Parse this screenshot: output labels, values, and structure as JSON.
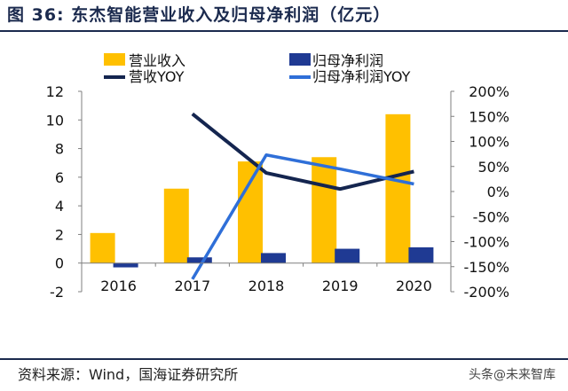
{
  "header": {
    "title": "图 36:  东杰智能营业收入及归母净利润（亿元）"
  },
  "footer": {
    "source": "资料来源：Wind，国海证券研究所",
    "watermark": "头条@未来智库"
  },
  "colors": {
    "revenue_bar": "#FFC000",
    "profit_bar": "#1F3A93",
    "revenue_yoy_line": "#14254F",
    "profit_yoy_line": "#2F6FD8",
    "title": "#1b2a4e"
  },
  "chart_data": {
    "type": "bar",
    "categories": [
      "2016",
      "2017",
      "2018",
      "2019",
      "2020"
    ],
    "series": [
      {
        "name": "营业收入",
        "type": "bar",
        "axis": "left",
        "values": [
          2.1,
          5.2,
          7.1,
          7.4,
          10.4
        ]
      },
      {
        "name": "归母净利润",
        "type": "bar",
        "axis": "left",
        "values": [
          -0.3,
          0.4,
          0.7,
          1.0,
          1.1
        ]
      },
      {
        "name": "营收YOY",
        "type": "line",
        "axis": "right",
        "values": [
          null,
          155,
          37,
          5,
          40
        ]
      },
      {
        "name": "归母净利润YOY",
        "type": "line",
        "axis": "right",
        "values": [
          null,
          -175,
          73,
          45,
          15
        ]
      }
    ],
    "left_axis": {
      "min": -2,
      "max": 12,
      "ticks": [
        -2,
        0,
        2,
        4,
        6,
        8,
        10,
        12
      ],
      "tick_labels": [
        "-2",
        "0",
        "2",
        "4",
        "6",
        "8",
        "10",
        "12"
      ]
    },
    "right_axis": {
      "min": -200,
      "max": 200,
      "ticks": [
        -200,
        -150,
        -100,
        -50,
        0,
        50,
        100,
        150,
        200
      ],
      "tick_labels": [
        "-200%",
        "-150%",
        "-100%",
        "-50%",
        "0%",
        "50%",
        "100%",
        "150%",
        "200%"
      ]
    },
    "legend_placement": "top",
    "grid": false
  }
}
